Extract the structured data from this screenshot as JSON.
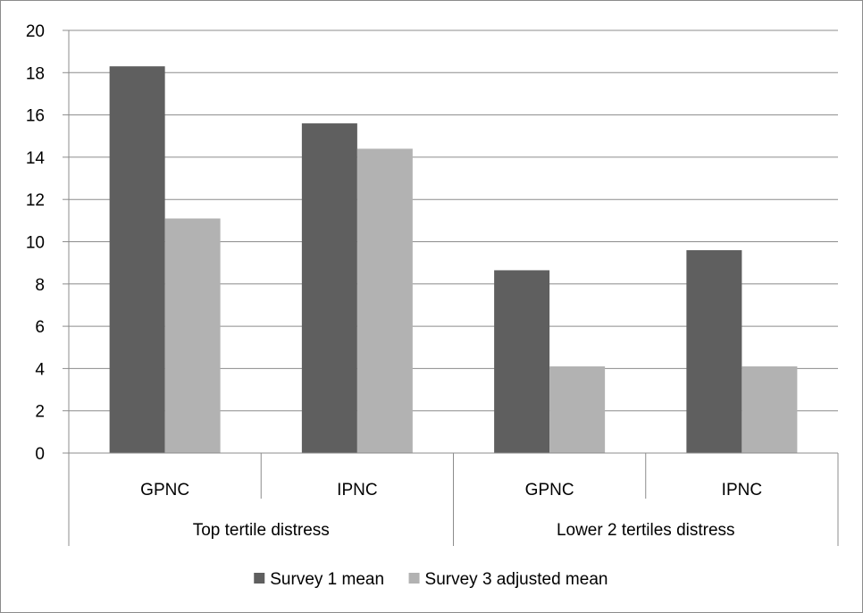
{
  "chart_data": {
    "type": "bar",
    "title": "",
    "xlabel": "",
    "ylabel": "",
    "ylim": [
      0,
      20
    ],
    "yticks": [
      0,
      2,
      4,
      6,
      8,
      10,
      12,
      14,
      16,
      18,
      20
    ],
    "grid": true,
    "legend_position": "bottom",
    "groups": [
      {
        "label": "Top tertile distress",
        "categories": [
          "GPNC",
          "IPNC"
        ]
      },
      {
        "label": "Lower 2 tertiles distress",
        "categories": [
          "GPNC",
          "IPNC"
        ]
      }
    ],
    "categories": [
      "GPNC",
      "IPNC",
      "GPNC",
      "IPNC"
    ],
    "series": [
      {
        "name": "Survey 1 mean",
        "color": "#5f5f5f",
        "values": [
          18.3,
          15.6,
          8.65,
          9.6
        ]
      },
      {
        "name": "Survey 3 adjusted mean",
        "color": "#b2b2b2",
        "values": [
          11.1,
          14.4,
          4.1,
          4.1
        ]
      }
    ]
  }
}
